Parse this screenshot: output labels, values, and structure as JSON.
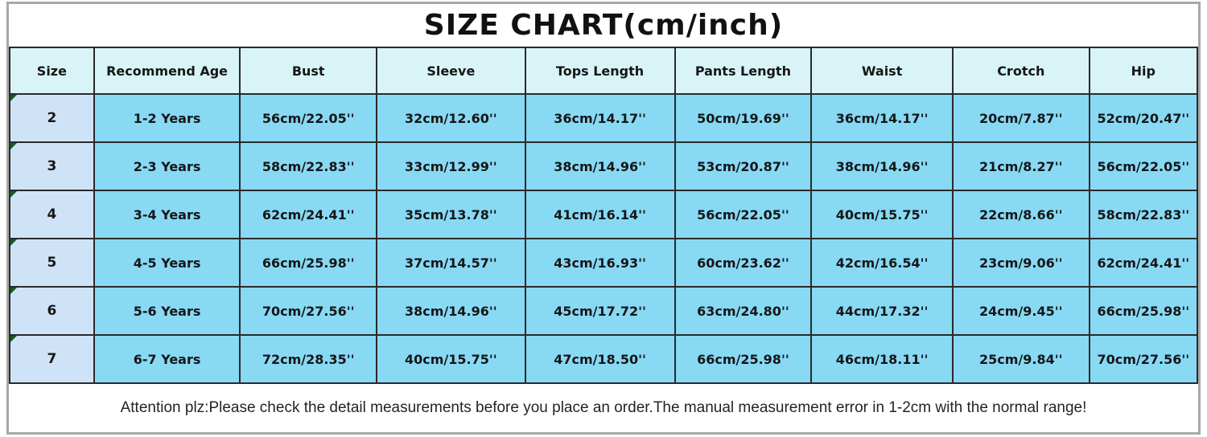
{
  "title": "SIZE CHART(cm/inch)",
  "note": "Attention plz:Please check the detail measurements before you place an order.The manual measurement error in 1-2cm with the normal range!",
  "colors": {
    "header_bg": "#d8f4f7",
    "size_column_bg": "#cfe3f8",
    "data_cell_bg": "#88d9f4",
    "grid_border": "#2a2a2a",
    "outer_frame": "#a8a8a8",
    "corner_flag_green": "#1c5720"
  },
  "chart_data": {
    "type": "table",
    "title": "SIZE CHART(cm/inch)",
    "columns": [
      "Size",
      "Recommend Age",
      "Bust",
      "Sleeve",
      "Tops Length",
      "Pants Length",
      "Waist",
      "Crotch",
      "Hip"
    ],
    "rows": [
      [
        "2",
        "1-2 Years",
        "56cm/22.05''",
        "32cm/12.60''",
        "36cm/14.17''",
        "50cm/19.69''",
        "36cm/14.17''",
        "20cm/7.87''",
        "52cm/20.47''"
      ],
      [
        "3",
        "2-3 Years",
        "58cm/22.83''",
        "33cm/12.99''",
        "38cm/14.96''",
        "53cm/20.87''",
        "38cm/14.96''",
        "21cm/8.27''",
        "56cm/22.05''"
      ],
      [
        "4",
        "3-4 Years",
        "62cm/24.41''",
        "35cm/13.78''",
        "41cm/16.14''",
        "56cm/22.05''",
        "40cm/15.75''",
        "22cm/8.66''",
        "58cm/22.83''"
      ],
      [
        "5",
        "4-5 Years",
        "66cm/25.98''",
        "37cm/14.57''",
        "43cm/16.93''",
        "60cm/23.62''",
        "42cm/16.54''",
        "23cm/9.06''",
        "62cm/24.41''"
      ],
      [
        "6",
        "5-6 Years",
        "70cm/27.56''",
        "38cm/14.96''",
        "45cm/17.72''",
        "63cm/24.80''",
        "44cm/17.32''",
        "24cm/9.45''",
        "66cm/25.98''"
      ],
      [
        "7",
        "6-7 Years",
        "72cm/28.35''",
        "40cm/15.75''",
        "47cm/18.50''",
        "66cm/25.98''",
        "46cm/18.11''",
        "25cm/9.84''",
        "70cm/27.56''"
      ]
    ]
  }
}
